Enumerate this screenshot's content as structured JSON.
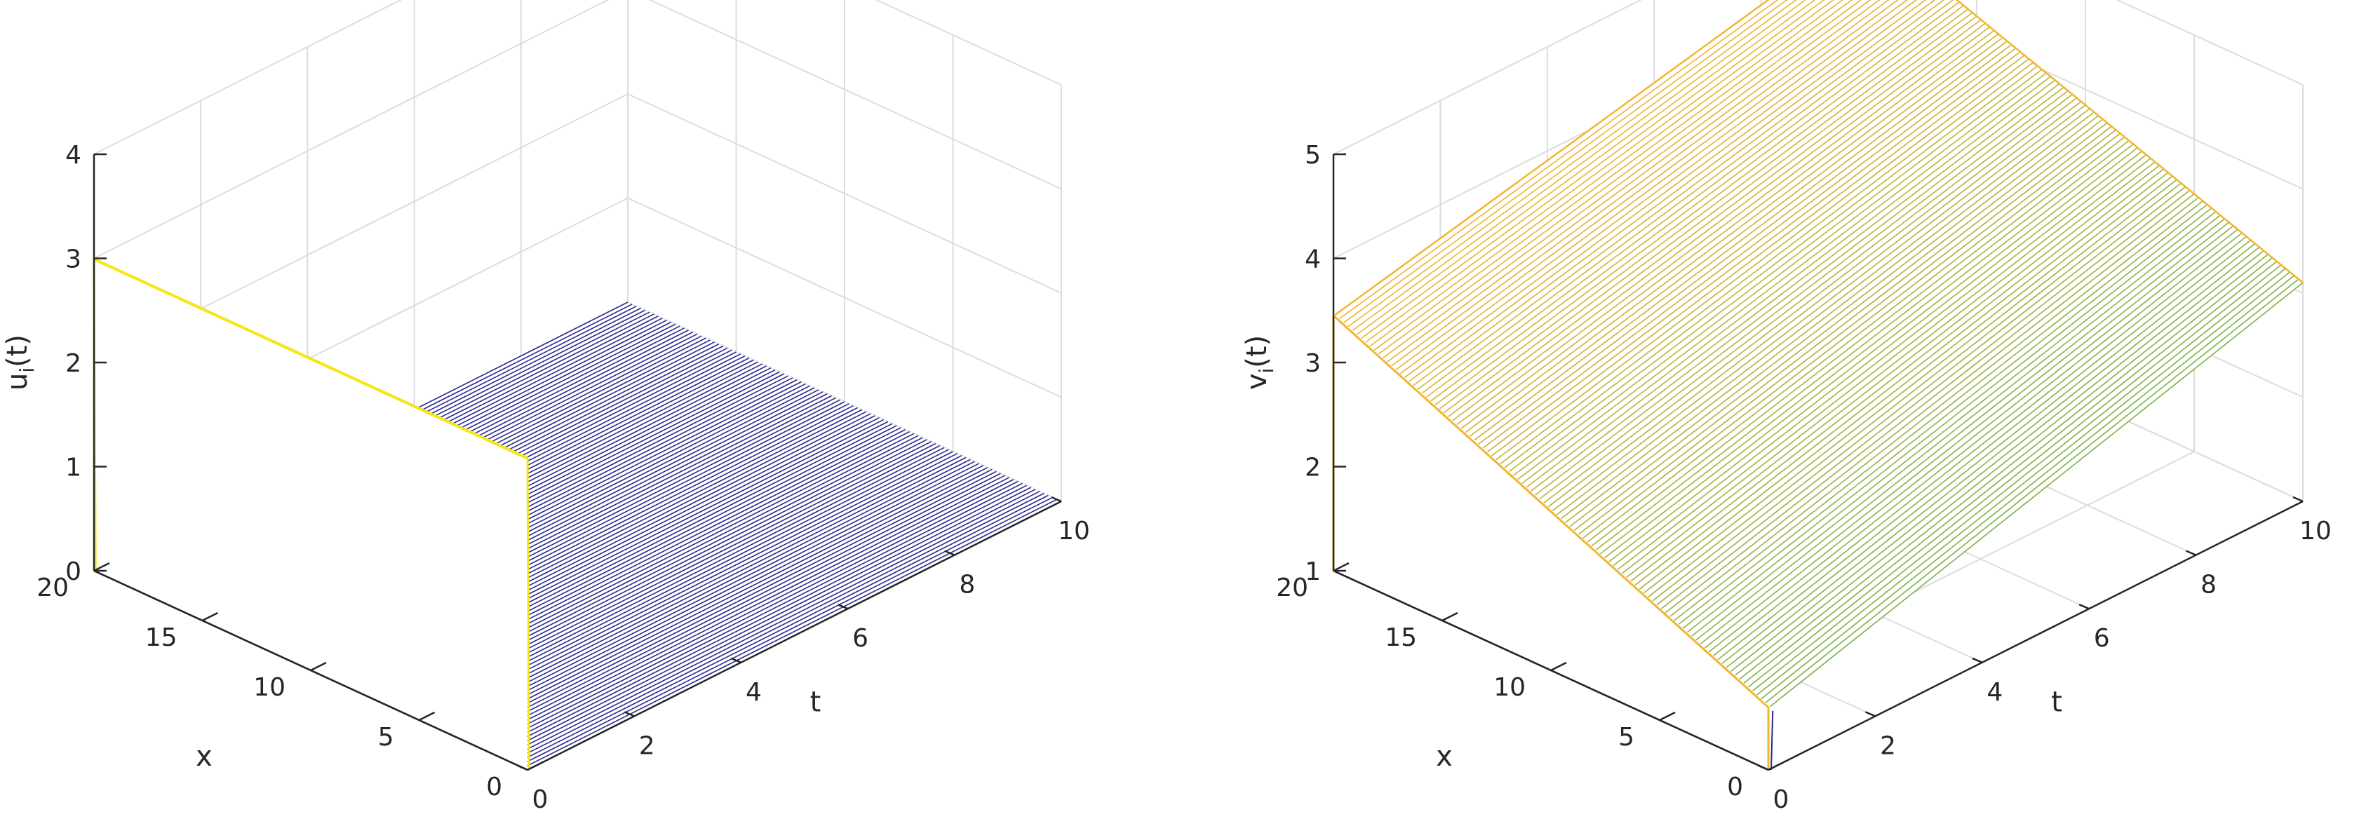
{
  "chart_data": [
    {
      "type": "surface",
      "panel": "left",
      "zlabel_main": "u",
      "zlabel_sub": "i",
      "zlabel_tail": "(t)",
      "xlabel": "x",
      "tlabel": "t",
      "x_range": [
        0,
        20
      ],
      "t_range": [
        0,
        10
      ],
      "zlim": [
        0,
        4
      ],
      "x_ticks": [
        "0",
        "5",
        "10",
        "15",
        "20"
      ],
      "t_ticks": [
        "0",
        "2",
        "4",
        "6",
        "8",
        "10"
      ],
      "z_ticks": [
        "0",
        "1",
        "2",
        "3",
        "4"
      ],
      "grid": true,
      "surface": {
        "description_values": "u = 3 at t = 0 for all x; u = 0 for t > 0",
        "initial_value": 3,
        "later_value": 0,
        "color_high": "#f5e61c",
        "color_low": "#2b2a8c"
      }
    },
    {
      "type": "surface",
      "panel": "right",
      "zlabel_main": "v",
      "zlabel_sub": "i",
      "zlabel_tail": "(t)",
      "xlabel": "x",
      "tlabel": "t",
      "x_range": [
        0,
        20
      ],
      "t_range": [
        0,
        10
      ],
      "zlim": [
        1,
        5
      ],
      "x_ticks": [
        "0",
        "5",
        "10",
        "15",
        "20"
      ],
      "t_ticks": [
        "0",
        "2",
        "4",
        "6",
        "8",
        "10"
      ],
      "z_ticks": [
        "1",
        "2",
        "3",
        "4",
        "5"
      ],
      "grid": true,
      "surface": {
        "initial_value": 1,
        "start_corner_value": 3.45,
        "x_max_t_max_value": 4.6,
        "x_min_t_max_value": 3.1,
        "color_low": "#2b2a8c",
        "color_mid": "#4caf50",
        "color_high": "#f5b52a"
      }
    }
  ]
}
